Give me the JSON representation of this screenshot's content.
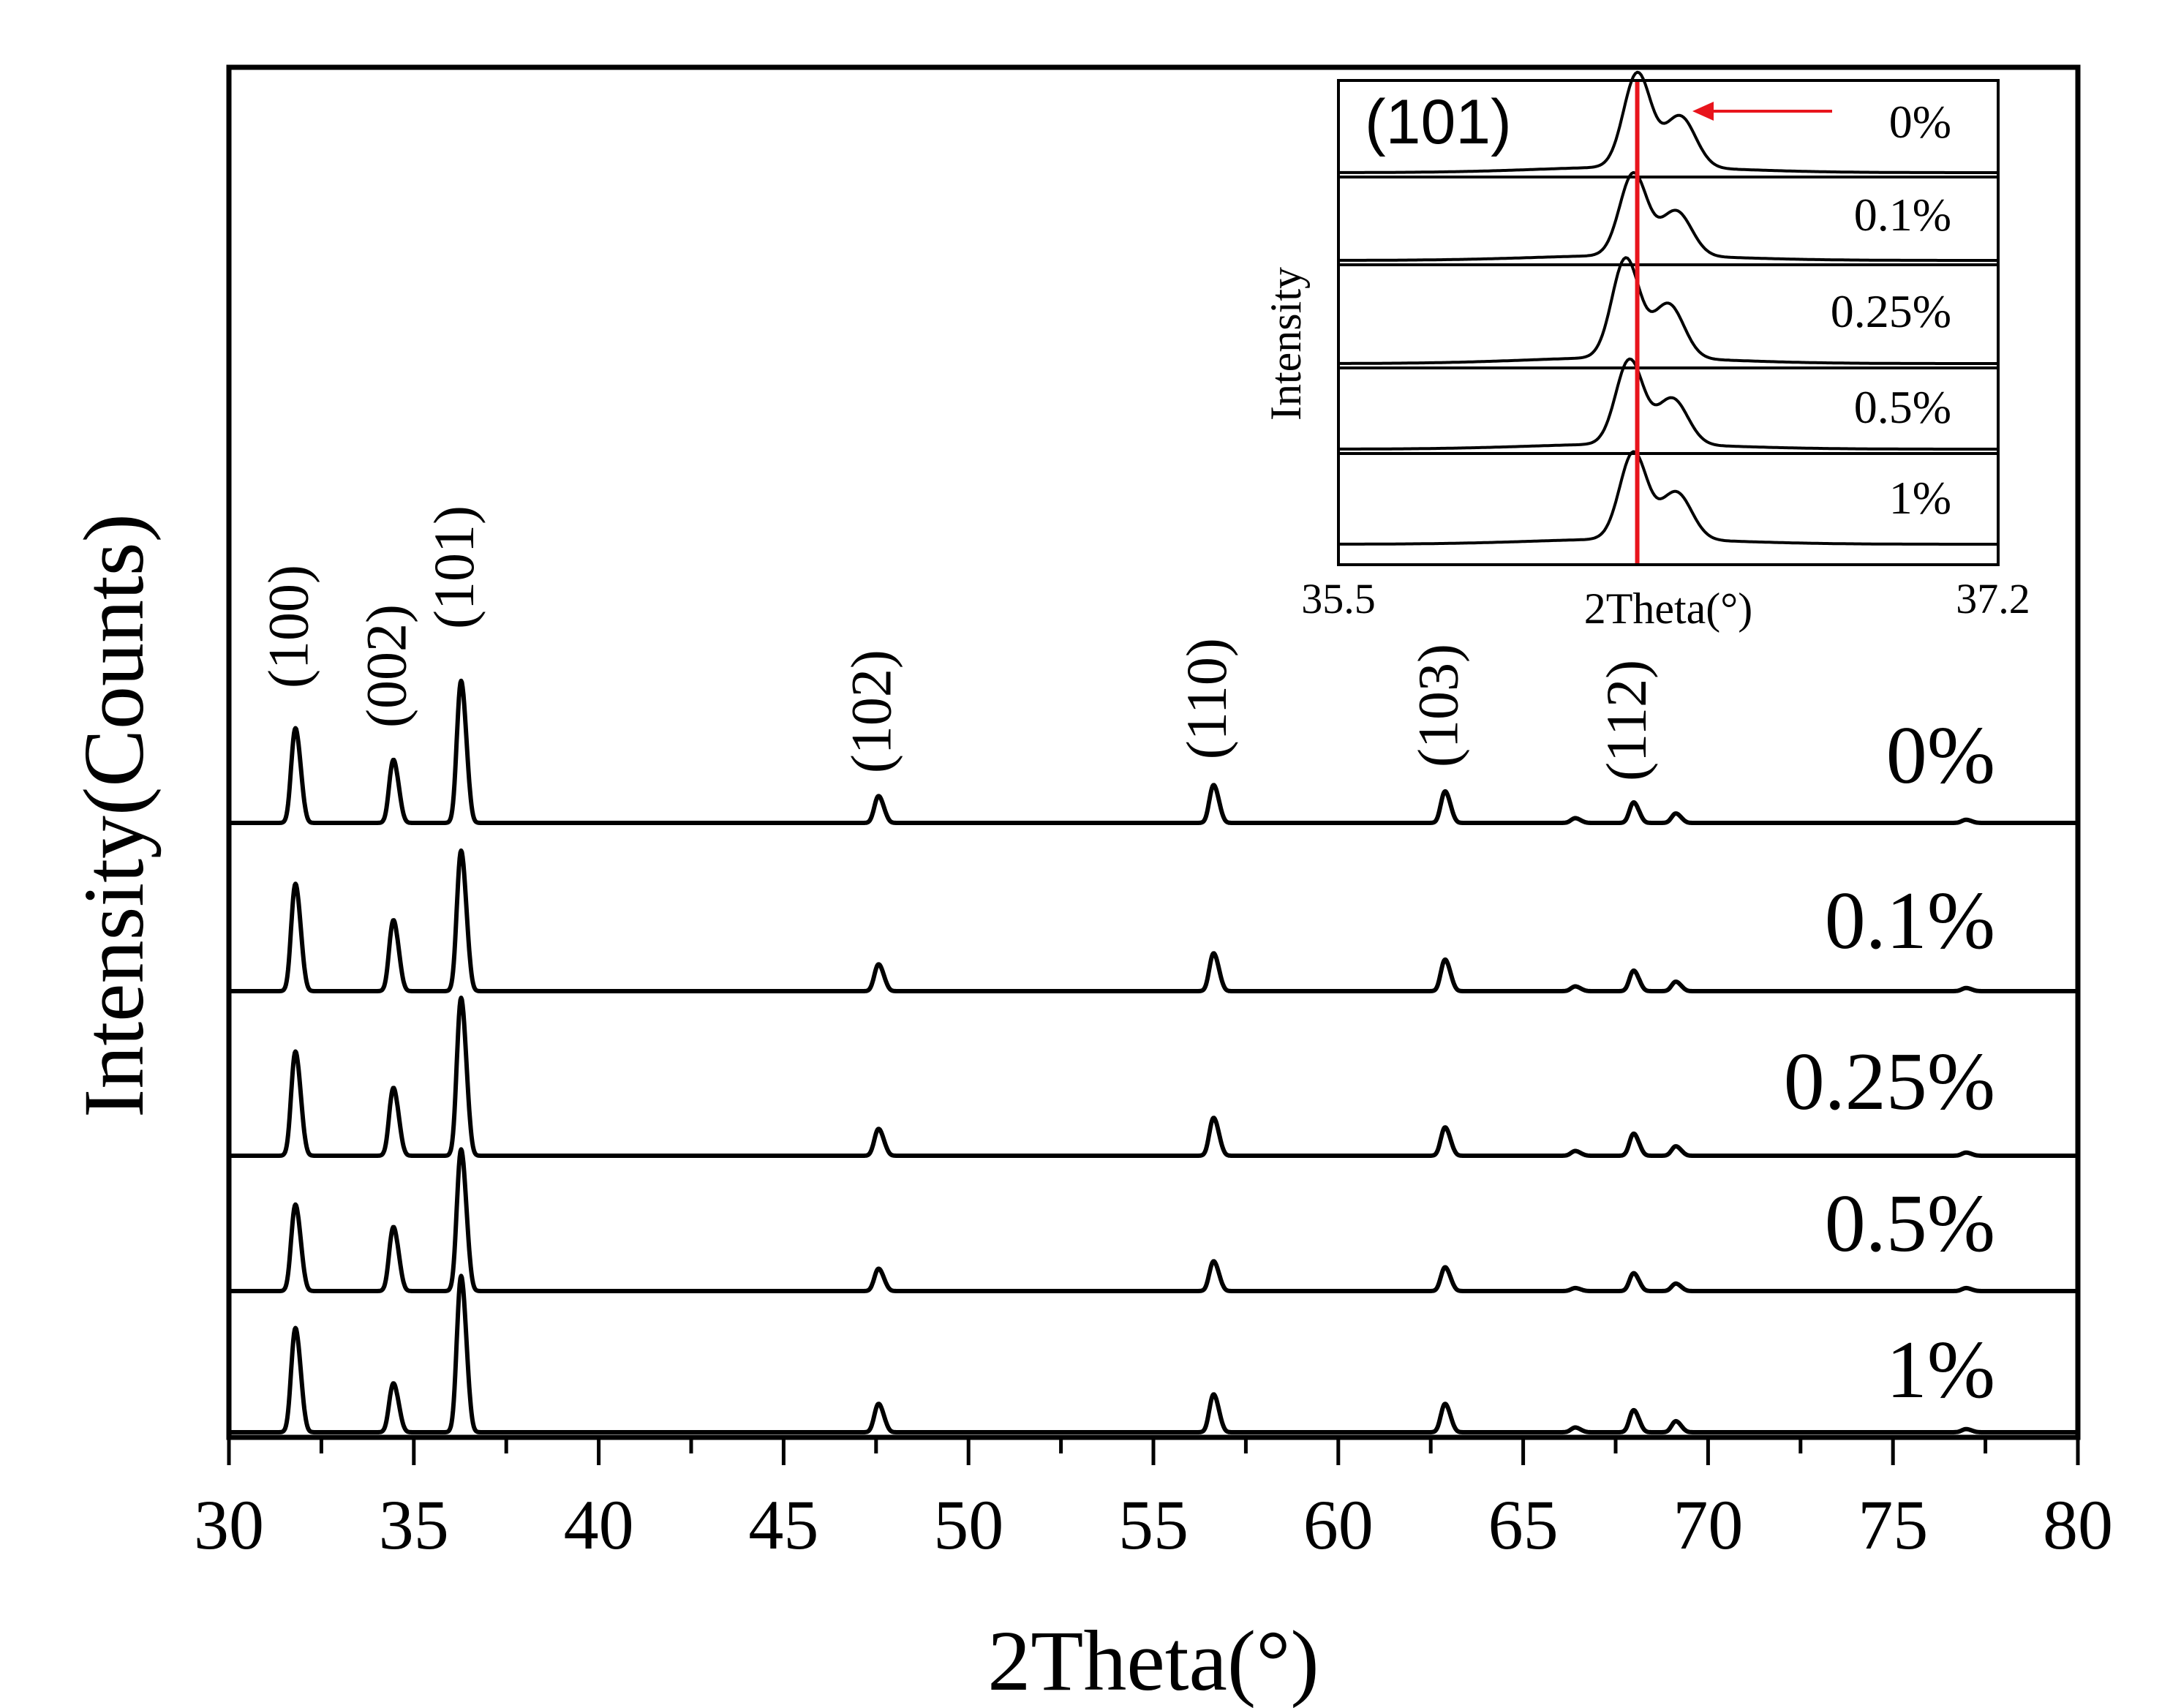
{
  "chart_data": [
    {
      "type": "line",
      "title": "",
      "xlabel": "2Theta(°)",
      "ylabel": "Intensity(Counts)",
      "xlim": [
        30,
        80
      ],
      "xticks": [
        "30",
        "35",
        "40",
        "45",
        "50",
        "55",
        "60",
        "65",
        "70",
        "75",
        "80"
      ],
      "grid": false,
      "peaks": [
        {
          "label": "(100)",
          "x": 31.77,
          "h": [
            0.6,
            0.68,
            0.66,
            0.58,
            0.66
          ]
        },
        {
          "label": "(002)",
          "x": 34.42,
          "h": [
            0.4,
            0.45,
            0.43,
            0.43,
            0.31
          ]
        },
        {
          "label": "(101)",
          "x": 36.25,
          "h": [
            0.9,
            0.89,
            1.0,
            0.95,
            0.99
          ]
        },
        {
          "label": "(102)",
          "x": 47.54,
          "h": [
            0.17,
            0.17,
            0.17,
            0.15,
            0.18
          ]
        },
        {
          "label": "(110)",
          "x": 56.6,
          "h": [
            0.24,
            0.24,
            0.24,
            0.2,
            0.24
          ]
        },
        {
          "label": "(103)",
          "x": 62.86,
          "h": [
            0.2,
            0.2,
            0.18,
            0.16,
            0.18
          ]
        },
        {
          "label": "",
          "x": 66.38,
          "h": [
            0.03,
            0.03,
            0.03,
            0.02,
            0.03
          ]
        },
        {
          "label": "(112)",
          "x": 67.96,
          "h": [
            0.13,
            0.13,
            0.14,
            0.12,
            0.14
          ]
        },
        {
          "label": "",
          "x": 69.1,
          "h": [
            0.06,
            0.06,
            0.06,
            0.05,
            0.07
          ]
        },
        {
          "label": "",
          "x": 76.95,
          "h": [
            0.02,
            0.02,
            0.02,
            0.02,
            0.02
          ]
        }
      ],
      "series": [
        {
          "name": "0%"
        },
        {
          "name": "0.1%"
        },
        {
          "name": "0.25%"
        },
        {
          "name": "0.5%"
        },
        {
          "name": "1%"
        }
      ]
    },
    {
      "type": "line",
      "title": "(101)",
      "xlabel": "2Theta(°)",
      "ylabel": "Intensity",
      "xlim": [
        35.5,
        37.2
      ],
      "xticks": [
        "35.5",
        "37.2"
      ],
      "reference_line_x": 36.27,
      "reference_color": "#e8141c",
      "shift_direction": "left",
      "series": [
        {
          "name": "0%",
          "peak_x": 36.27,
          "shoulder_x": 36.38
        },
        {
          "name": "0.1%",
          "peak_x": 36.26,
          "shoulder_x": 36.37
        },
        {
          "name": "0.25%",
          "peak_x": 36.24,
          "shoulder_x": 36.35
        },
        {
          "name": "0.5%",
          "peak_x": 36.25,
          "shoulder_x": 36.36
        },
        {
          "name": "1%",
          "peak_x": 36.26,
          "shoulder_x": 36.37
        }
      ]
    }
  ]
}
